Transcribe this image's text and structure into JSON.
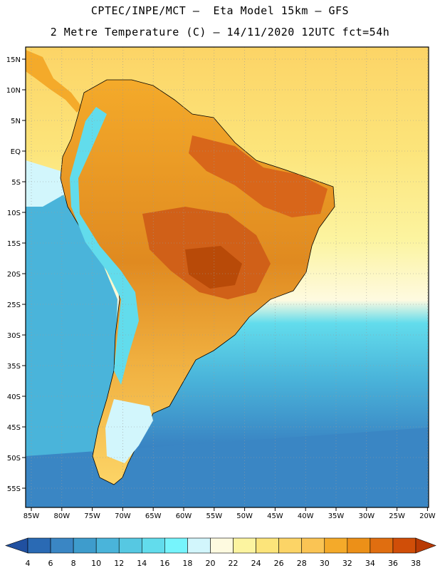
{
  "header": {
    "line1": "CPTEC/INPE/MCT –  Eta Model 15km – GFS",
    "line2": "2 Metre Temperature (C) – 14/11/2020 12UTC fct=54h"
  },
  "map": {
    "lat_labels": [
      "15N",
      "10N",
      "5N",
      "EQ",
      "5S",
      "10S",
      "15S",
      "20S",
      "25S",
      "30S",
      "35S",
      "40S",
      "45S",
      "50S",
      "55S"
    ],
    "lon_labels": [
      "85W",
      "80W",
      "75W",
      "70W",
      "65W",
      "60W",
      "55W",
      "50W",
      "45W",
      "40W",
      "35W",
      "30W",
      "25W",
      "20W"
    ],
    "region": "South America",
    "variable": "2 Metre Temperature (C)"
  },
  "colorbar": {
    "ticks": [
      "4",
      "6",
      "8",
      "10",
      "12",
      "14",
      "16",
      "18",
      "20",
      "22",
      "24",
      "26",
      "28",
      "30",
      "32",
      "34",
      "36",
      "38"
    ],
    "colors": [
      "#2a6ab4",
      "#3a86c4",
      "#3e9ccc",
      "#4ab4da",
      "#56c8e2",
      "#62dcec",
      "#76f4fc",
      "#d2f6fc",
      "#fefae0",
      "#fcf4a0",
      "#fce47a",
      "#fcd466",
      "#fac454",
      "#f4aa2a",
      "#ec9018",
      "#e06e10",
      "#d04e08"
    ],
    "low_color": "#2050a0",
    "high_color": "#b83a04"
  }
}
